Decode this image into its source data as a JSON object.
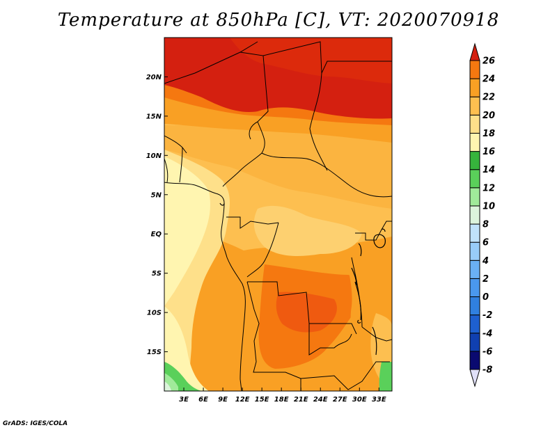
{
  "title": "Temperature at 850hPa [C], VT: 2020070918",
  "credit": "GrADS: IGES/COLA",
  "map": {
    "variable": "Temperature at 850hPa",
    "units": "C",
    "valid_time": "2020070918",
    "lon_range": [
      0,
      35
    ],
    "lat_range": [
      -20,
      25
    ],
    "lat_ticks": [
      {
        "value": 20,
        "label": "20N"
      },
      {
        "value": 15,
        "label": "15N"
      },
      {
        "value": 10,
        "label": "10N"
      },
      {
        "value": 5,
        "label": "5N"
      },
      {
        "value": 0,
        "label": "EQ"
      },
      {
        "value": -5,
        "label": "5S"
      },
      {
        "value": -10,
        "label": "10S"
      },
      {
        "value": -15,
        "label": "15S"
      }
    ],
    "lon_ticks": [
      {
        "value": 3,
        "label": "3E"
      },
      {
        "value": 6,
        "label": "6E"
      },
      {
        "value": 9,
        "label": "9E"
      },
      {
        "value": 12,
        "label": "12E"
      },
      {
        "value": 15,
        "label": "15E"
      },
      {
        "value": 18,
        "label": "18E"
      },
      {
        "value": 21,
        "label": "21E"
      },
      {
        "value": 24,
        "label": "24E"
      },
      {
        "value": 27,
        "label": "27E"
      },
      {
        "value": 30,
        "label": "30E"
      },
      {
        "value": 33,
        "label": "33E"
      }
    ]
  },
  "colorbar": {
    "min_arrow_color": "#e0e0f8",
    "max_arrow_color": "#d42010",
    "bins": [
      {
        "lo": -8,
        "hi": -6,
        "color": "#0a0a70"
      },
      {
        "lo": -6,
        "hi": -4,
        "color": "#1040b0"
      },
      {
        "lo": -4,
        "hi": -2,
        "color": "#1e60d0"
      },
      {
        "lo": -2,
        "hi": 0,
        "color": "#3080e0"
      },
      {
        "lo": 0,
        "hi": 2,
        "color": "#4a98ee"
      },
      {
        "lo": 2,
        "hi": 4,
        "color": "#6ab0f4"
      },
      {
        "lo": 4,
        "hi": 6,
        "color": "#98ccf8"
      },
      {
        "lo": 6,
        "hi": 8,
        "color": "#c0e2fa"
      },
      {
        "lo": 8,
        "hi": 10,
        "color": "#dcf4dc"
      },
      {
        "lo": 10,
        "hi": 12,
        "color": "#a0ea9a"
      },
      {
        "lo": 12,
        "hi": 14,
        "color": "#5ad05a"
      },
      {
        "lo": 14,
        "hi": 16,
        "color": "#36b43c"
      },
      {
        "lo": 16,
        "hi": 18,
        "color": "#fff5b0"
      },
      {
        "lo": 18,
        "hi": 20,
        "color": "#fee08a"
      },
      {
        "lo": 20,
        "hi": 22,
        "color": "#fdbf50"
      },
      {
        "lo": 22,
        "hi": 24,
        "color": "#f9a024"
      },
      {
        "lo": 24,
        "hi": 26,
        "color": "#f57810"
      }
    ],
    "tick_labels": [
      "-8",
      "-6",
      "-4",
      "-2",
      "0",
      "2",
      "4",
      "6",
      "8",
      "10",
      "12",
      "14",
      "16",
      "18",
      "20",
      "22",
      "24",
      "26"
    ]
  }
}
